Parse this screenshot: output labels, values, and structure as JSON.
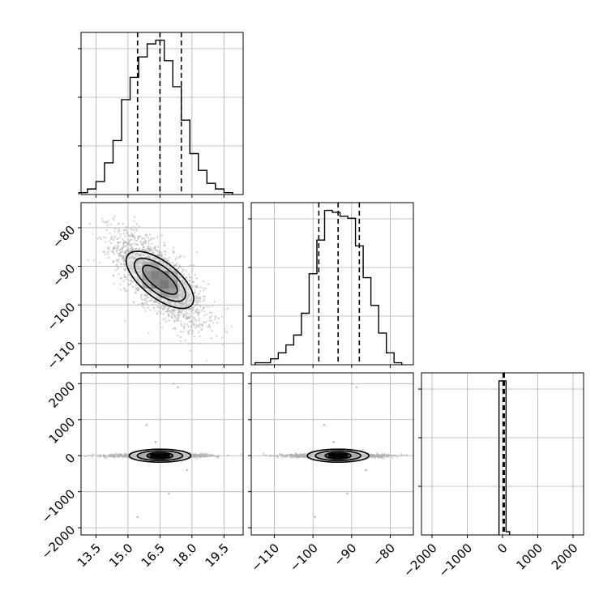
{
  "chart_data": [
    {
      "type": "histogram",
      "panel": "diag-1",
      "xlim": [
        12.8,
        20.4
      ],
      "x": [
        12.9,
        13.3,
        13.7,
        14.1,
        14.5,
        14.9,
        15.3,
        15.7,
        16.1,
        16.5,
        16.9,
        17.3,
        17.7,
        18.1,
        18.5,
        18.9,
        19.3,
        19.7
      ],
      "values": [
        1,
        3,
        7,
        17,
        29,
        51,
        63,
        74,
        81,
        83,
        72,
        58,
        40,
        22,
        13,
        6,
        3,
        1
      ],
      "quantile_lines": [
        15.45,
        16.5,
        17.5
      ],
      "grid": true
    },
    {
      "type": "scatter-contour",
      "panel": "x1-vs-x2",
      "xlim": [
        12.8,
        20.4
      ],
      "ylim": [
        -115.5,
        -73.5
      ],
      "yticks": [
        "−80",
        "−90",
        "−100",
        "−110"
      ],
      "ytick_values": [
        -80,
        -90,
        -100,
        -110
      ],
      "center": [
        16.5,
        -93.5
      ],
      "grid": true
    },
    {
      "type": "histogram",
      "panel": "diag-2",
      "xlim": [
        -116,
        -74
      ],
      "x": [
        -114,
        -112,
        -110,
        -108,
        -106,
        -104,
        -102,
        -100,
        -98,
        -96,
        -94,
        -92,
        -90,
        -88,
        -86,
        -84,
        -82,
        -80,
        -78
      ],
      "values": [
        1,
        1,
        3,
        6,
        10,
        15,
        26,
        46,
        63,
        78,
        77,
        75,
        74,
        60,
        44,
        30,
        16,
        6,
        1
      ],
      "quantile_lines": [
        -98.5,
        -93.5,
        -88
      ],
      "grid": true
    },
    {
      "type": "scatter-contour",
      "panel": "x1-vs-x3",
      "xlim": [
        12.8,
        20.4
      ],
      "ylim": [
        -2200,
        2300
      ],
      "center": [
        16.5,
        0
      ],
      "grid": true
    },
    {
      "type": "scatter-contour",
      "panel": "x2-vs-x3",
      "xlim": [
        -116,
        -74
      ],
      "ylim": [
        -2200,
        2300
      ],
      "center": [
        -93.5,
        0
      ],
      "grid": true
    },
    {
      "type": "histogram",
      "panel": "diag-3",
      "xlim": [
        -2300,
        2300
      ],
      "x": [
        -50,
        50,
        150
      ],
      "values": [
        95,
        95,
        2
      ],
      "ylim": [
        0,
        100
      ],
      "quantile_lines": [
        20,
        35,
        50
      ],
      "grid": true
    }
  ],
  "axes": {
    "bottom1_ticks": [
      "13.5",
      "15.0",
      "16.5",
      "18.0",
      "19.5"
    ],
    "bottom1_values": [
      13.5,
      15.0,
      16.5,
      18.0,
      19.5
    ],
    "bottom2_ticks": [
      "−110",
      "−100",
      "−90",
      "−80"
    ],
    "bottom2_values": [
      -110,
      -100,
      -90,
      -80
    ],
    "bottom3_ticks": [
      "−2000",
      "−1000",
      "0",
      "1000",
      "2000"
    ],
    "bottom3_values": [
      -2000,
      -1000,
      0,
      1000,
      2000
    ],
    "left3_ticks": [
      "2000",
      "1000",
      "0",
      "−1000",
      "−2000"
    ],
    "left3_values": [
      2000,
      1000,
      0,
      -1000,
      -2000
    ]
  },
  "colors": {
    "line": "#000000",
    "points": "#b0b0b0",
    "grid": "#b0b0b0"
  }
}
